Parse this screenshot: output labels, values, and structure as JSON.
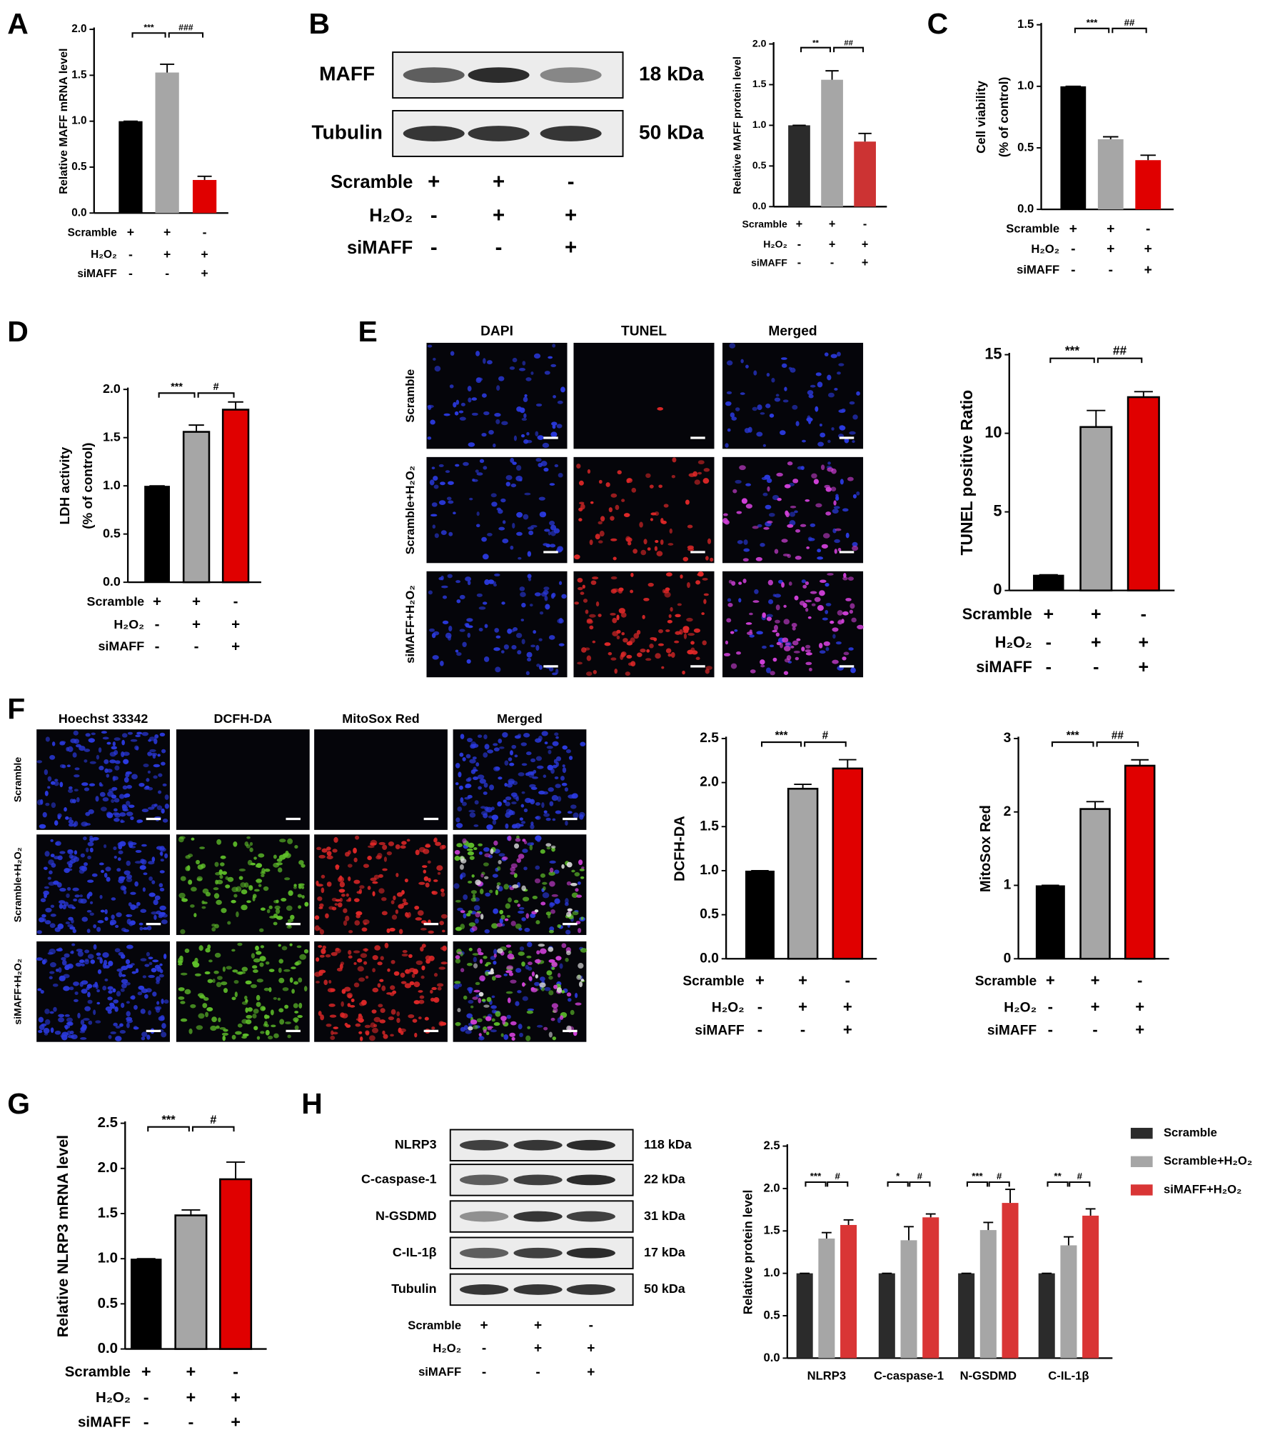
{
  "panel_labels": [
    "A",
    "B",
    "C",
    "D",
    "E",
    "F",
    "G",
    "H"
  ],
  "blots": [
    {
      "bands": [
        {
          "name": "MAFF",
          "size": "18 kDa"
        },
        {
          "name": "Tubulin",
          "size": "50 kDa"
        }
      ],
      "conditions": [
        {
          "label": "Scramble",
          "marks": [
            "+",
            "+",
            "-"
          ]
        },
        {
          "label": "H₂O₂",
          "marks": [
            "-",
            "+",
            "+"
          ]
        },
        {
          "label": "siMAFF",
          "marks": [
            "-",
            "-",
            "+"
          ]
        }
      ]
    },
    {
      "bands": [
        {
          "name": "NLRP3",
          "size": "118 kDa"
        },
        {
          "name": "C-caspase-1",
          "size": "22 kDa"
        },
        {
          "name": "N-GSDMD",
          "size": "31 kDa"
        },
        {
          "name": "C-IL-1β",
          "size": "17 kDa"
        },
        {
          "name": "Tubulin",
          "size": "50 kDa"
        }
      ],
      "conditions": [
        {
          "label": "Scramble",
          "marks": [
            "+",
            "+",
            "-"
          ]
        },
        {
          "label": "H₂O₂",
          "marks": [
            "-",
            "+",
            "+"
          ]
        },
        {
          "label": "siMAFF",
          "marks": [
            "-",
            "-",
            "+"
          ]
        }
      ]
    }
  ],
  "image_grids": [
    {
      "columns": [
        "DAPI",
        "TUNEL",
        "Merged"
      ],
      "rows": [
        "Scramble",
        "Scramble+H₂O₂",
        "siMAFF+H₂O₂"
      ]
    },
    {
      "columns": [
        "Hoechst 33342",
        "DCFH-DA",
        "MitoSox Red",
        "Merged"
      ],
      "rows": [
        "Scramble",
        "Scramble+H₂O₂",
        "siMAFF+H₂O₂"
      ]
    }
  ],
  "chart_data": [
    {
      "type": "bar",
      "ylabel": [
        "Relative MAFF mRNA level"
      ],
      "categories": [
        null,
        null,
        null
      ],
      "values": [
        1,
        1.53,
        0.36
      ],
      "errors": [
        0,
        0.09,
        0.04
      ],
      "colors": [
        "#000000",
        "#a6a6a6",
        "#e00000"
      ],
      "outline": false,
      "ylim": [
        0,
        2
      ],
      "yticks": [
        {
          "value": 0,
          "label": "0.0"
        },
        0.5,
        {
          "value": 1,
          "label": "1.0"
        },
        1.5,
        {
          "value": 2,
          "label": "2.0"
        }
      ],
      "annotations": [
        "***",
        "###"
      ],
      "conditions": [
        {
          "label": "Scramble",
          "marks": [
            "+",
            "+",
            "-"
          ]
        },
        {
          "label": "H₂O₂",
          "marks": [
            "-",
            "+",
            "+"
          ]
        },
        {
          "label": "siMAFF",
          "marks": [
            "-",
            "-",
            "+"
          ]
        }
      ]
    },
    {
      "type": "bar",
      "ylabel": [
        "Relative MAFF protein level"
      ],
      "categories": [
        null,
        null,
        null
      ],
      "values": [
        1,
        1.56,
        0.8
      ],
      "errors": [
        0,
        0.11,
        0.1
      ],
      "colors": [
        "#2b2b2b",
        "#a6a6a6",
        "#cc3333"
      ],
      "outline": false,
      "ylim": [
        0,
        2
      ],
      "yticks": [
        {
          "value": 0,
          "label": "0.0"
        },
        0.5,
        {
          "value": 1,
          "label": "1.0"
        },
        1.5,
        {
          "value": 2,
          "label": "2.0"
        }
      ],
      "annotations": [
        "**",
        "##"
      ],
      "conditions": [
        {
          "label": "Scramble",
          "marks": [
            "+",
            "+",
            "-"
          ]
        },
        {
          "label": "H₂O₂",
          "marks": [
            "-",
            "+",
            "+"
          ]
        },
        {
          "label": "siMAFF",
          "marks": [
            "-",
            "-",
            "+"
          ]
        }
      ]
    },
    {
      "type": "bar",
      "ylabel": [
        "Cell viability",
        "(% of control)"
      ],
      "categories": [
        null,
        null,
        null
      ],
      "values": [
        1,
        0.57,
        0.4
      ],
      "errors": [
        0,
        0.02,
        0.04
      ],
      "colors": [
        "#000000",
        "#a6a6a6",
        "#e00000"
      ],
      "outline": false,
      "ylim": [
        0,
        1.5
      ],
      "yticks": [
        {
          "value": 0,
          "label": "0.0"
        },
        0.5,
        {
          "value": 1,
          "label": "1.0"
        },
        1.5
      ],
      "annotations": [
        "***",
        "##"
      ],
      "conditions": [
        {
          "label": "Scramble",
          "marks": [
            "+",
            "+",
            "-"
          ]
        },
        {
          "label": "H₂O₂",
          "marks": [
            "-",
            "+",
            "+"
          ]
        },
        {
          "label": "siMAFF",
          "marks": [
            "-",
            "-",
            "+"
          ]
        }
      ]
    },
    {
      "type": "bar",
      "ylabel": [
        "LDH activity",
        "(% of control)"
      ],
      "categories": [
        null,
        null,
        null
      ],
      "values": [
        1,
        1.56,
        1.79
      ],
      "errors": [
        0,
        0.07,
        0.08
      ],
      "colors": [
        "#000000",
        "#a6a6a6",
        "#e00000"
      ],
      "outline": true,
      "ylim": [
        0,
        2
      ],
      "yticks": [
        {
          "value": 0,
          "label": "0.0"
        },
        0.5,
        {
          "value": 1,
          "label": "1.0"
        },
        1.5,
        {
          "value": 2,
          "label": "2.0"
        }
      ],
      "annotations": [
        "***",
        "#"
      ],
      "conditions": [
        {
          "label": "Scramble",
          "marks": [
            "+",
            "+",
            "-"
          ]
        },
        {
          "label": "H₂O₂",
          "marks": [
            "-",
            "+",
            "+"
          ]
        },
        {
          "label": "siMAFF",
          "marks": [
            "-",
            "-",
            "+"
          ]
        }
      ]
    },
    {
      "type": "bar",
      "ylabel": [
        "TUNEL positive Ratio"
      ],
      "categories": [
        null,
        null,
        null
      ],
      "values": [
        1,
        10.4,
        12.3
      ],
      "errors": [
        0,
        1.05,
        0.35
      ],
      "colors": [
        "#000000",
        "#a6a6a6",
        "#e00000"
      ],
      "outline": true,
      "ylim": [
        0,
        15
      ],
      "yticks": [
        0,
        5,
        10,
        15
      ],
      "annotations": [
        "***",
        "##"
      ],
      "conditions": [
        {
          "label": "Scramble",
          "marks": [
            "+",
            "+",
            "-"
          ]
        },
        {
          "label": "H₂O₂",
          "marks": [
            "-",
            "+",
            "+"
          ]
        },
        {
          "label": "siMAFF",
          "marks": [
            "-",
            "-",
            "+"
          ]
        }
      ]
    },
    {
      "type": "bar",
      "ylabel": [
        "DCFH-DA"
      ],
      "categories": [
        null,
        null,
        null
      ],
      "values": [
        1,
        1.93,
        2.16
      ],
      "errors": [
        0,
        0.05,
        0.1
      ],
      "colors": [
        "#000000",
        "#a6a6a6",
        "#e00000"
      ],
      "outline": true,
      "ylim": [
        0,
        2.5
      ],
      "yticks": [
        {
          "value": 0,
          "label": "0.0"
        },
        0.5,
        {
          "value": 1,
          "label": "1.0"
        },
        1.5,
        {
          "value": 2,
          "label": "2.0"
        },
        2.5
      ],
      "annotations": [
        "***",
        "#"
      ],
      "conditions": [
        {
          "label": "Scramble",
          "marks": [
            "+",
            "+",
            "-"
          ]
        },
        {
          "label": "H₂O₂",
          "marks": [
            "-",
            "+",
            "+"
          ]
        },
        {
          "label": "siMAFF",
          "marks": [
            "-",
            "-",
            "+"
          ]
        }
      ]
    },
    {
      "type": "bar",
      "ylabel": [
        "MitoSox Red"
      ],
      "categories": [
        null,
        null,
        null
      ],
      "values": [
        1,
        2.04,
        2.63
      ],
      "errors": [
        0,
        0.1,
        0.08
      ],
      "colors": [
        "#000000",
        "#a6a6a6",
        "#e00000"
      ],
      "outline": true,
      "ylim": [
        0,
        3
      ],
      "yticks": [
        0,
        1,
        2,
        3
      ],
      "annotations": [
        "***",
        "##"
      ],
      "conditions": [
        {
          "label": "Scramble",
          "marks": [
            "+",
            "+",
            "-"
          ]
        },
        {
          "label": "H₂O₂",
          "marks": [
            "-",
            "+",
            "+"
          ]
        },
        {
          "label": "siMAFF",
          "marks": [
            "-",
            "-",
            "+"
          ]
        }
      ]
    },
    {
      "type": "bar",
      "ylabel": [
        "Relative NLRP3 mRNA level"
      ],
      "categories": [
        null,
        null,
        null
      ],
      "values": [
        1,
        1.48,
        1.88
      ],
      "errors": [
        0,
        0.06,
        0.19
      ],
      "colors": [
        "#000000",
        "#a6a6a6",
        "#e00000"
      ],
      "outline": true,
      "ylim": [
        0,
        2.5
      ],
      "yticks": [
        {
          "value": 0,
          "label": "0.0"
        },
        0.5,
        {
          "value": 1,
          "label": "1.0"
        },
        1.5,
        {
          "value": 2,
          "label": "2.0"
        },
        2.5
      ],
      "annotations": [
        "***",
        "#"
      ],
      "conditions": [
        {
          "label": "Scramble",
          "marks": [
            "+",
            "+",
            "-"
          ]
        },
        {
          "label": "H₂O₂",
          "marks": [
            "-",
            "+",
            "+"
          ]
        },
        {
          "label": "siMAFF",
          "marks": [
            "-",
            "-",
            "+"
          ]
        }
      ]
    },
    {
      "type": "grouped_bar",
      "ylabel": [
        "Relative  protein level"
      ],
      "categories": [
        "NLRP3",
        "C-caspase-1",
        "N-GSDMD",
        "C-IL-1β"
      ],
      "series": [
        {
          "name": "Scramble",
          "color": "#2b2b2b",
          "values": [
            1,
            1,
            1,
            1
          ],
          "errors": [
            0,
            0,
            0,
            0
          ]
        },
        {
          "name": "Scramble+H₂O₂",
          "color": "#a6a6a6",
          "values": [
            1.41,
            1.39,
            1.51,
            1.33
          ],
          "errors": [
            0.07,
            0.16,
            0.09,
            0.1
          ]
        },
        {
          "name": "siMAFF+H₂O₂",
          "color": "#d93535",
          "values": [
            1.57,
            1.66,
            1.83,
            1.68
          ],
          "errors": [
            0.06,
            0.04,
            0.16,
            0.08
          ]
        }
      ],
      "ylim": [
        0,
        2.5
      ],
      "yticks": [
        {
          "value": 0,
          "label": "0.0"
        },
        0.5,
        {
          "value": 1,
          "label": "1.0"
        },
        1.5,
        {
          "value": 2,
          "label": "2.0"
        },
        2.5
      ],
      "annotations": [
        [
          "***",
          "#"
        ],
        [
          "*",
          "#"
        ],
        [
          "***",
          "#"
        ],
        [
          "**",
          "#"
        ]
      ],
      "legend": "right"
    }
  ]
}
